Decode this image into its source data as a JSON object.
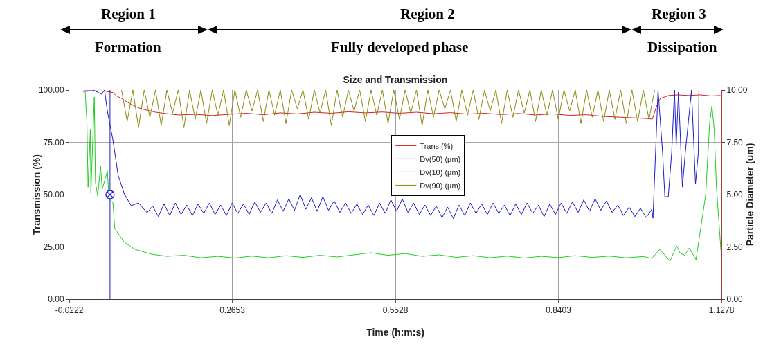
{
  "chart_data": {
    "type": "line",
    "title": "Size and Transmission",
    "xlabel": "Time (h:m:s)",
    "ylabel": "Transmission (%)",
    "y2label": "Particle Diameter (um)",
    "annotations": [
      "Region 1",
      "Formation",
      "Region 2",
      "Fully developed phase",
      "Region 3",
      "Dissipation"
    ],
    "xlim": [
      -0.0222,
      1.1278
    ],
    "xticks": [
      -0.0222,
      0.2653,
      0.5528,
      0.8403,
      1.1278
    ],
    "ylim": [
      0,
      100
    ],
    "yticks": [
      {
        "value": 0,
        "label": "0.00"
      },
      {
        "value": 25,
        "label": "25.00"
      },
      {
        "value": 50,
        "label": "50.00"
      },
      {
        "value": 75,
        "label": "75.00"
      },
      {
        "value": 100,
        "label": "100.00"
      }
    ],
    "y2lim": [
      0,
      10
    ],
    "y2ticks": [
      {
        "value": 0,
        "label": "0.00"
      },
      {
        "value": 2.5,
        "label": "2.50"
      },
      {
        "value": 5,
        "label": "5.00"
      },
      {
        "value": 7.5,
        "label": "7.50"
      },
      {
        "value": 10,
        "label": "10.00"
      }
    ],
    "grid": true,
    "legend": "top",
    "marker": "none",
    "line_style": "solid",
    "ref_lines": [
      {
        "axis": "x",
        "value": 0.0497,
        "label": null,
        "color": "#2020c0"
      }
    ],
    "series": [
      {
        "name": "Trans (%)",
        "color": "#d42020",
        "x": [
          0.002,
          0.02,
          0.04,
          0.055,
          0.06,
          0.07,
          0.085,
          0.1,
          0.11,
          0.13,
          0.15,
          0.17,
          0.2,
          0.23,
          0.26,
          0.29,
          0.32,
          0.35,
          0.38,
          0.41,
          0.44,
          0.47,
          0.5,
          0.53,
          0.56,
          0.59,
          0.62,
          0.65,
          0.68,
          0.71,
          0.74,
          0.77,
          0.8,
          0.83,
          0.86,
          0.89,
          0.92,
          0.95,
          0.98,
          0.995,
          1.006,
          1.013,
          1.02,
          1.035,
          1.05,
          1.07,
          1.09,
          1.11,
          1.126
        ],
        "values": [
          99.3,
          99.6,
          99.5,
          98.8,
          97.4,
          96.0,
          93.4,
          91.5,
          90.7,
          89.4,
          88.7,
          88.1,
          88.4,
          87.8,
          88.4,
          88.9,
          88.2,
          89.1,
          88.6,
          89.4,
          88.9,
          89.6,
          89.1,
          89.5,
          88.9,
          89.4,
          88.7,
          89.2,
          88.5,
          88.9,
          88.3,
          88.8,
          88.1,
          88.6,
          87.9,
          88.2,
          87.4,
          87.0,
          86.6,
          86.4,
          86.1,
          92.0,
          96.0,
          97.4,
          97.7,
          97.4,
          97.7,
          97.2,
          97.4
        ]
      },
      {
        "name": "Dv(50) (µm)",
        "color": "#1a1acc",
        "axis": "y2",
        "x": [
          0.005,
          0.02,
          0.035,
          0.04,
          0.045,
          0.055,
          0.064,
          0.075,
          0.087,
          0.1,
          0.115,
          0.125,
          0.135,
          0.145,
          0.155,
          0.165,
          0.175,
          0.185,
          0.195,
          0.205,
          0.215,
          0.225,
          0.235,
          0.245,
          0.255,
          0.265,
          0.275,
          0.285,
          0.295,
          0.305,
          0.315,
          0.325,
          0.335,
          0.345,
          0.355,
          0.365,
          0.375,
          0.385,
          0.395,
          0.405,
          0.415,
          0.425,
          0.435,
          0.445,
          0.455,
          0.465,
          0.475,
          0.485,
          0.495,
          0.505,
          0.515,
          0.525,
          0.535,
          0.545,
          0.555,
          0.565,
          0.575,
          0.585,
          0.595,
          0.605,
          0.615,
          0.625,
          0.635,
          0.645,
          0.655,
          0.665,
          0.675,
          0.685,
          0.695,
          0.705,
          0.715,
          0.725,
          0.735,
          0.745,
          0.755,
          0.765,
          0.775,
          0.785,
          0.795,
          0.805,
          0.815,
          0.825,
          0.835,
          0.845,
          0.855,
          0.865,
          0.875,
          0.885,
          0.895,
          0.905,
          0.915,
          0.925,
          0.935,
          0.945,
          0.955,
          0.965,
          0.975,
          0.985,
          0.995,
          1.005,
          1.007,
          1.016,
          1.024,
          1.028,
          1.034,
          1.04,
          1.045,
          1.048,
          1.052,
          1.059,
          1.064,
          1.075,
          1.082,
          1.087,
          1.088
        ],
        "values": [
          10,
          10,
          9.8,
          10,
          9.0,
          7.58,
          5.93,
          5.03,
          4.47,
          4.6,
          4.14,
          4.45,
          3.95,
          4.55,
          4.0,
          4.6,
          4.05,
          4.5,
          4.0,
          4.55,
          4.1,
          4.6,
          4.05,
          4.5,
          4.0,
          4.6,
          4.1,
          4.55,
          4.05,
          4.65,
          4.15,
          4.6,
          4.1,
          4.75,
          4.2,
          4.8,
          4.25,
          5.0,
          4.3,
          4.85,
          4.2,
          4.9,
          4.25,
          4.7,
          4.15,
          4.6,
          4.1,
          4.55,
          4.05,
          4.5,
          4.0,
          4.6,
          4.1,
          4.75,
          4.2,
          4.8,
          4.15,
          4.6,
          4.05,
          4.5,
          4.0,
          4.45,
          3.9,
          4.4,
          3.85,
          4.5,
          4.0,
          4.6,
          4.1,
          4.55,
          4.05,
          4.6,
          4.1,
          4.5,
          4.0,
          4.55,
          4.05,
          4.6,
          4.1,
          4.5,
          3.95,
          4.55,
          4.05,
          4.6,
          4.1,
          4.65,
          4.15,
          4.75,
          4.2,
          4.8,
          4.25,
          4.7,
          4.15,
          4.5,
          4.0,
          4.4,
          3.95,
          4.35,
          3.9,
          4.3,
          3.87,
          10,
          7.0,
          4.9,
          4.9,
          7.0,
          10,
          7.35,
          9.9,
          5.36,
          7.0,
          10,
          5.5,
          7.0,
          10
        ]
      },
      {
        "name": "Dv(10) (µm)",
        "color": "#22cc22",
        "axis": "y2",
        "x": [
          0.006,
          0.009,
          0.011,
          0.015,
          0.016,
          0.022,
          0.024,
          0.028,
          0.033,
          0.036,
          0.045,
          0.048,
          0.055,
          0.058,
          0.075,
          0.094,
          0.123,
          0.15,
          0.18,
          0.21,
          0.24,
          0.27,
          0.3,
          0.33,
          0.36,
          0.39,
          0.42,
          0.45,
          0.48,
          0.51,
          0.54,
          0.57,
          0.6,
          0.63,
          0.66,
          0.69,
          0.72,
          0.75,
          0.78,
          0.81,
          0.84,
          0.87,
          0.9,
          0.93,
          0.96,
          0.99,
          1.005,
          1.019,
          1.037,
          1.049,
          1.055,
          1.063,
          1.071,
          1.083,
          1.1,
          1.107,
          1.111,
          1.115,
          1.119,
          1.127
        ],
        "values": [
          9.9,
          8.44,
          5.36,
          8.1,
          5.1,
          9.67,
          5.6,
          4.93,
          6.36,
          5.26,
          6.13,
          4.8,
          4.6,
          3.38,
          2.72,
          2.38,
          2.15,
          2.05,
          2.1,
          1.98,
          2.05,
          1.97,
          2.06,
          1.98,
          2.08,
          2.0,
          2.1,
          2.02,
          2.12,
          2.22,
          2.1,
          2.18,
          2.05,
          2.12,
          2.0,
          2.08,
          1.98,
          2.06,
          1.97,
          2.05,
          1.99,
          2.08,
          2.0,
          2.06,
          1.98,
          2.04,
          1.95,
          2.38,
          1.82,
          2.55,
          2.2,
          2.1,
          2.45,
          1.89,
          5.0,
          8.44,
          9.24,
          8.1,
          5.36,
          2.28
        ]
      },
      {
        "name": "Dv(90) (µm)",
        "color": "#8a8a10",
        "axis": "y2",
        "x": [
          0.07,
          0.08,
          0.09,
          0.1,
          0.11,
          0.12,
          0.13,
          0.14,
          0.15,
          0.16,
          0.17,
          0.18,
          0.19,
          0.2,
          0.21,
          0.22,
          0.23,
          0.24,
          0.25,
          0.26,
          0.27,
          0.28,
          0.29,
          0.3,
          0.31,
          0.32,
          0.33,
          0.34,
          0.35,
          0.36,
          0.37,
          0.38,
          0.39,
          0.4,
          0.41,
          0.42,
          0.43,
          0.44,
          0.45,
          0.46,
          0.47,
          0.48,
          0.49,
          0.5,
          0.51,
          0.52,
          0.53,
          0.54,
          0.55,
          0.56,
          0.57,
          0.58,
          0.59,
          0.6,
          0.61,
          0.62,
          0.63,
          0.64,
          0.65,
          0.66,
          0.67,
          0.68,
          0.69,
          0.7,
          0.71,
          0.72,
          0.73,
          0.74,
          0.75,
          0.76,
          0.77,
          0.78,
          0.79,
          0.8,
          0.81,
          0.82,
          0.83,
          0.84,
          0.85,
          0.86,
          0.87,
          0.88,
          0.89,
          0.9,
          0.91,
          0.92,
          0.93,
          0.94,
          0.95,
          0.96,
          0.97,
          0.98,
          0.99,
          1.0,
          1.01
        ],
        "values": [
          10,
          8.5,
          10,
          8.2,
          10,
          8.7,
          10,
          8.3,
          10,
          8.9,
          10,
          8.2,
          10,
          8.6,
          10,
          8.4,
          10,
          8.8,
          10,
          8.3,
          10,
          8.7,
          10,
          9.0,
          10,
          8.5,
          10,
          8.8,
          10,
          8.4,
          10,
          9.1,
          10,
          8.6,
          10,
          8.9,
          10,
          8.3,
          10,
          8.7,
          10,
          9.0,
          10,
          8.5,
          10,
          8.8,
          10,
          8.4,
          10,
          8.6,
          10,
          8.9,
          10,
          8.3,
          10,
          8.7,
          10,
          9.1,
          10,
          8.5,
          10,
          8.8,
          10,
          8.6,
          10,
          9.0,
          10,
          8.4,
          10,
          8.7,
          10,
          8.9,
          10,
          8.5,
          10,
          8.8,
          10,
          8.6,
          10,
          9.0,
          10,
          8.4,
          10,
          8.7,
          10,
          8.5,
          10,
          8.6,
          10,
          8.4,
          10,
          8.5,
          10,
          8.6,
          10
        ]
      }
    ]
  }
}
